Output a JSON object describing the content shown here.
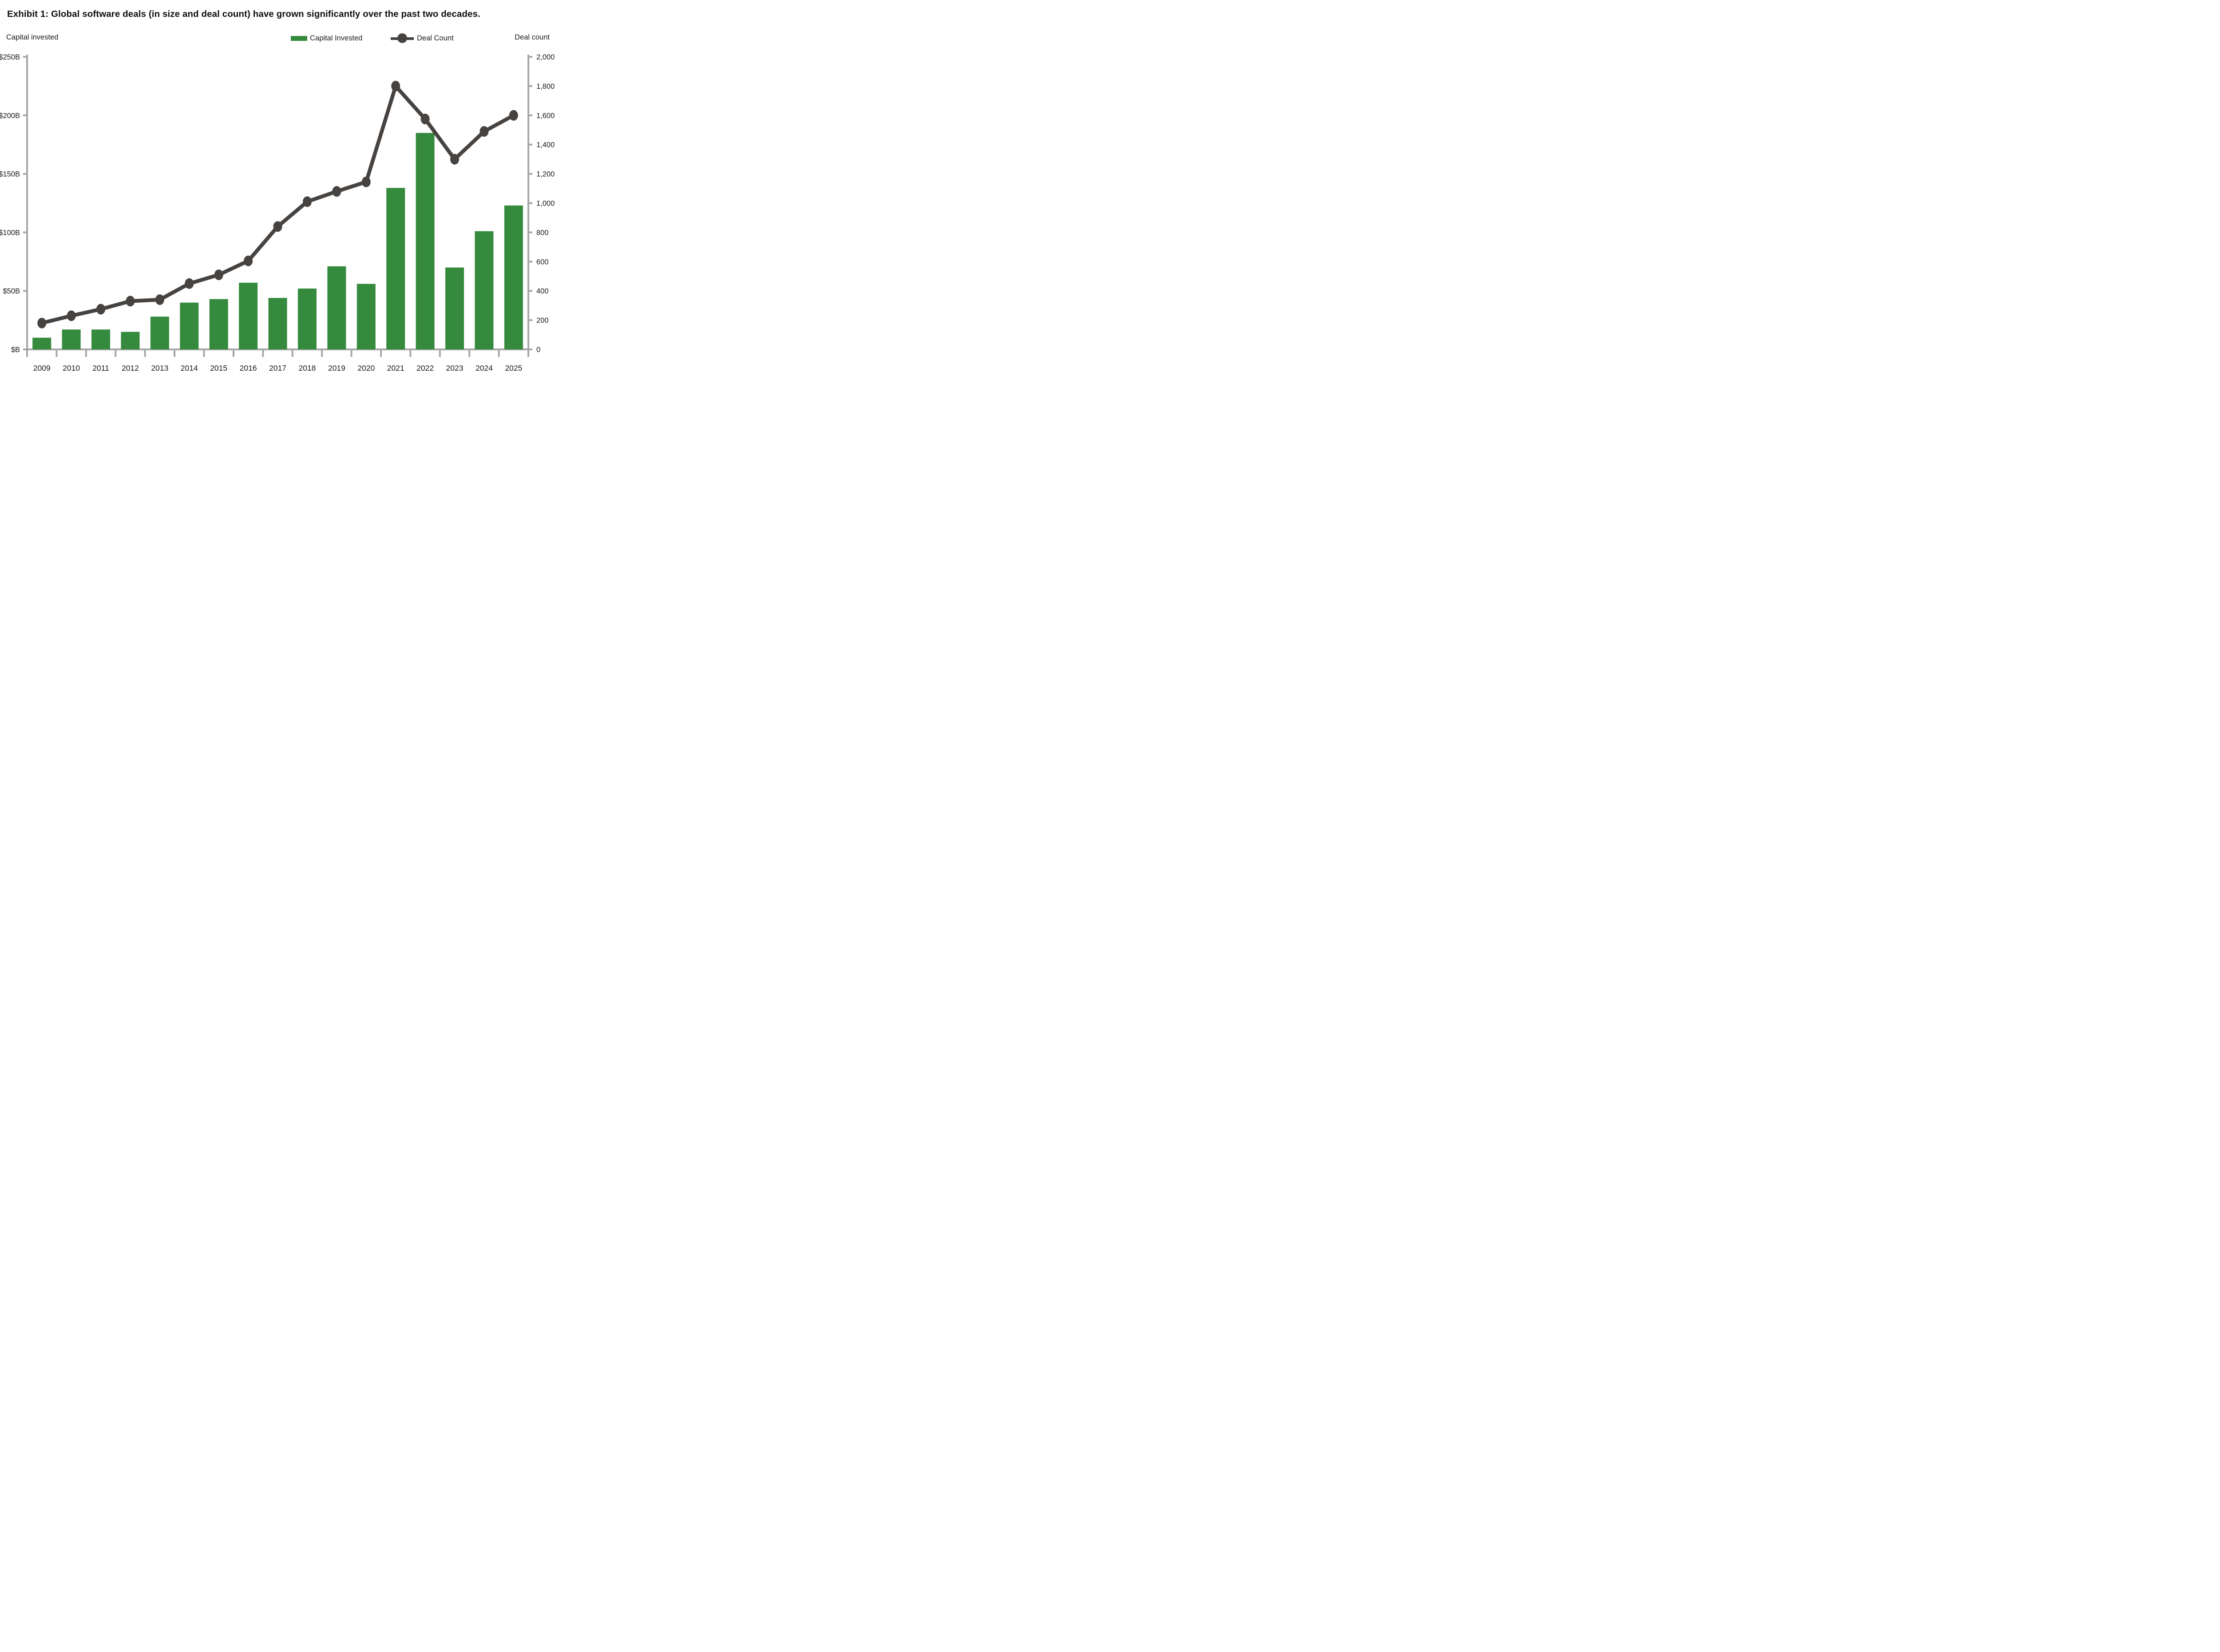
{
  "title": "Exhibit 1: Global software deals (in size and deal count) have grown significantly over the past two decades.",
  "left_axis_corner_label": "Capital invested",
  "right_axis_corner_label": "Deal count",
  "legend": {
    "capital_invested_label": "Capital Invested",
    "deal_count_label": "Deal Count"
  },
  "colors": {
    "bar": "#358a3e",
    "line": "#464341",
    "axis": "#a6a6a6",
    "text": "#1a1a1a",
    "title_text": "#0d0d0d",
    "background": "#ffffff"
  },
  "chart_data": {
    "type": "bar",
    "subtype": "combo-bar-line",
    "title": "Exhibit 1: Global software deals (in size and deal count) have grown significantly over the past two decades.",
    "categories": [
      "2009",
      "2010",
      "2011",
      "2012",
      "2013",
      "2014",
      "2015",
      "2016",
      "2017",
      "2018",
      "2019",
      "2020",
      "2021",
      "2022",
      "2023",
      "2024",
      "2025"
    ],
    "series": [
      {
        "name": "Capital Invested",
        "type": "bar",
        "axis": "left",
        "unit": "$B",
        "values": [
          10,
          17,
          17,
          15,
          28,
          40,
          43,
          57,
          44,
          52,
          71,
          56,
          138,
          185,
          70,
          101,
          123
        ]
      },
      {
        "name": "Deal Count",
        "type": "line",
        "axis": "right",
        "unit": "deals",
        "values": [
          180,
          230,
          275,
          330,
          340,
          450,
          510,
          605,
          840,
          1010,
          1080,
          1145,
          1800,
          1575,
          1300,
          1490,
          1600
        ]
      }
    ],
    "left_axis": {
      "label": "Capital invested",
      "min": 0,
      "max": 250,
      "tick_step": 50,
      "tick_labels": [
        "$B",
        "$50B",
        "$100B",
        "$150B",
        "$200B",
        "$250B"
      ]
    },
    "right_axis": {
      "label": "Deal count",
      "min": 0,
      "max": 2000,
      "tick_step": 200,
      "tick_labels": [
        "0",
        "200",
        "400",
        "600",
        "800",
        "1,000",
        "1,200",
        "1,400",
        "1,600",
        "1,800",
        "2,000"
      ]
    },
    "xlabel": "",
    "ylabel": "",
    "grid": false,
    "legend_position": "top"
  }
}
